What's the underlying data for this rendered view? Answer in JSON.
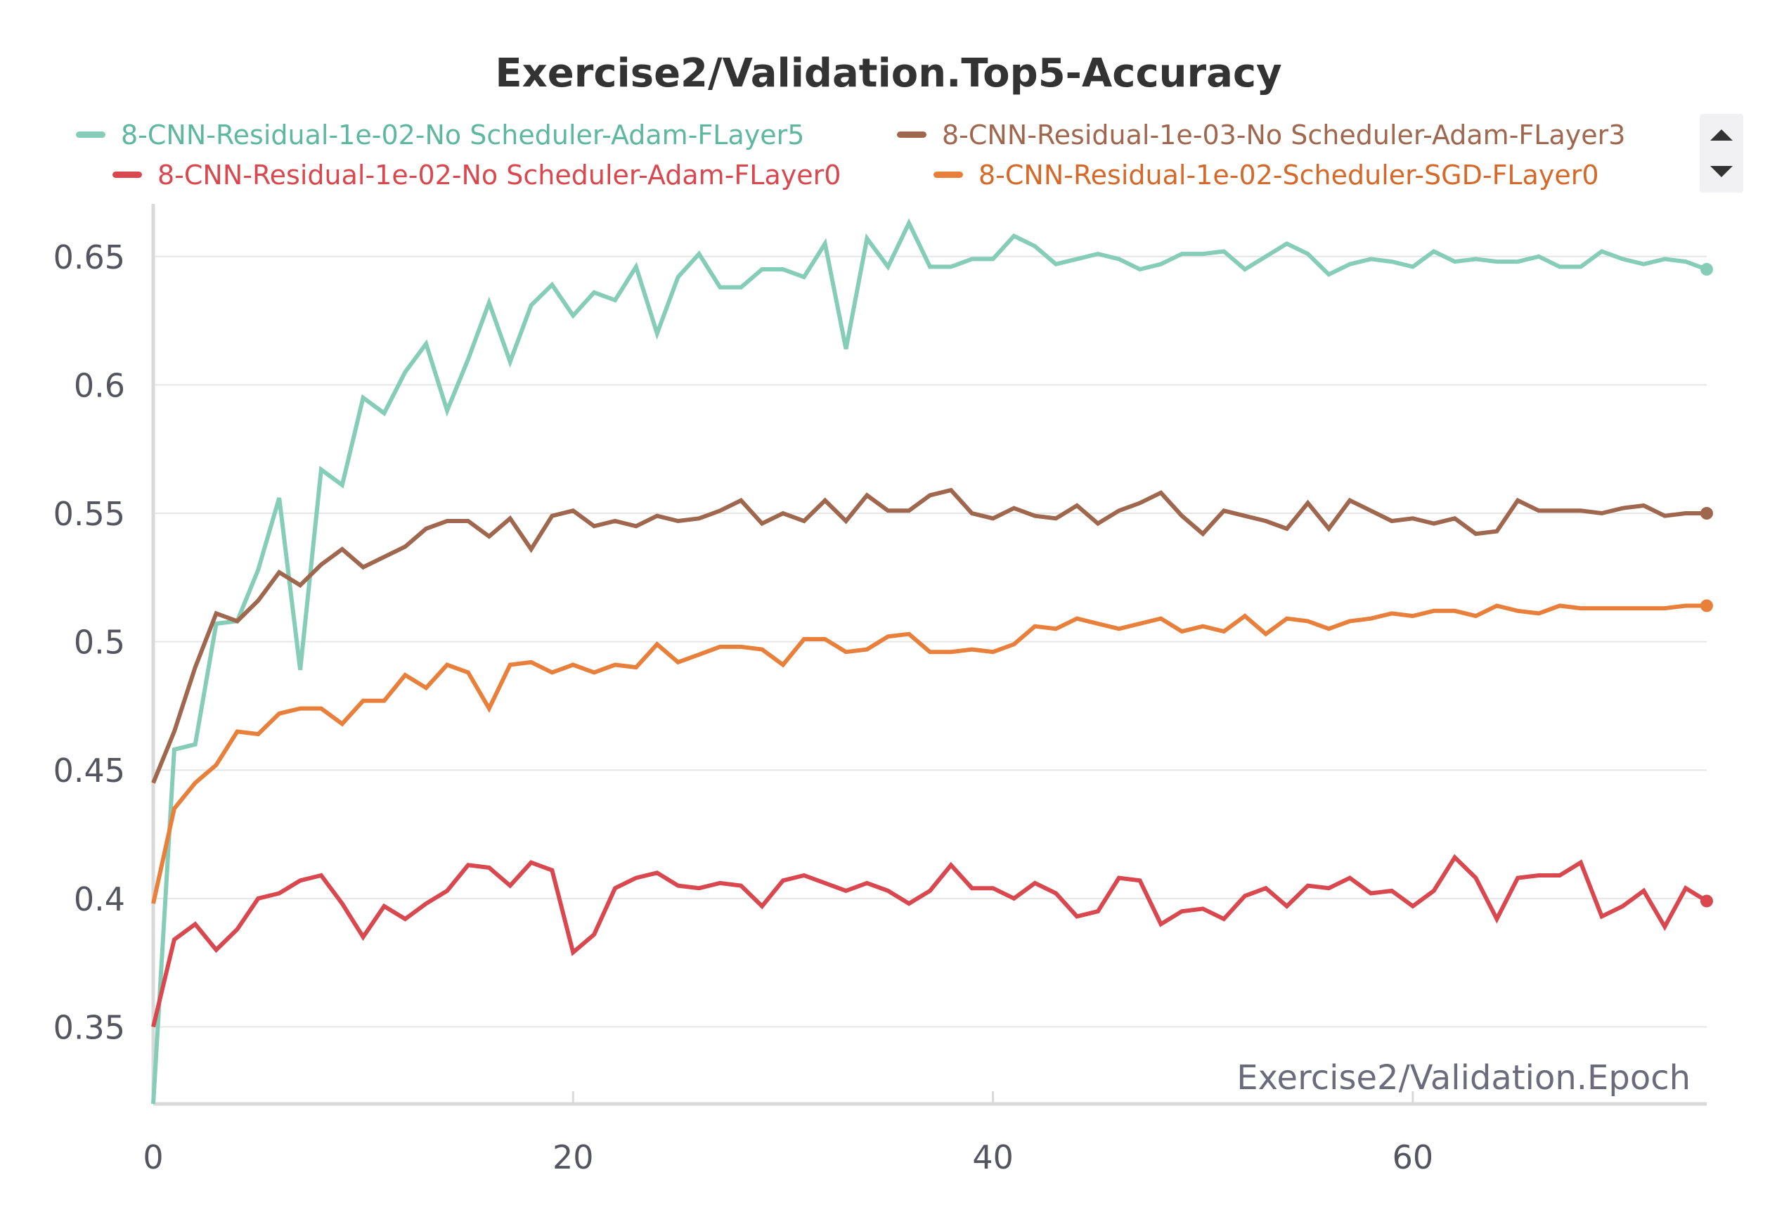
{
  "chart_data": {
    "type": "line",
    "title": "Exercise2/Validation.Top5-Accuracy",
    "xlabel": "Exercise2/Validation.Epoch",
    "ylabel": "",
    "xlim": [
      0,
      74
    ],
    "ylim": [
      0.32,
      0.665
    ],
    "x_ticks": [
      0,
      20,
      40,
      60
    ],
    "y_ticks": [
      0.35,
      0.4,
      0.45,
      0.5,
      0.55,
      0.6,
      0.65
    ],
    "y_tick_labels": [
      "0.35",
      "0.4",
      "0.45",
      "0.5",
      "0.55",
      "0.6",
      "0.65"
    ],
    "grid": true,
    "legend_position": "top",
    "series": [
      {
        "name": "8-CNN-Residual-1e-02-No Scheduler-Adam-FLayer5",
        "color": "#86cdb8",
        "text_color": "#5eb89f",
        "values": [
          0.32,
          0.458,
          0.46,
          0.507,
          0.508,
          0.528,
          0.556,
          0.489,
          0.567,
          0.561,
          0.595,
          0.589,
          0.605,
          0.616,
          0.59,
          0.61,
          0.632,
          0.609,
          0.631,
          0.639,
          0.627,
          0.636,
          0.633,
          0.646,
          0.62,
          0.642,
          0.651,
          0.638,
          0.638,
          0.645,
          0.645,
          0.642,
          0.655,
          0.614,
          0.657,
          0.646,
          0.663,
          0.646,
          0.646,
          0.649,
          0.649,
          0.658,
          0.654,
          0.647,
          0.649,
          0.651,
          0.649,
          0.645,
          0.647,
          0.651,
          0.651,
          0.652,
          0.645,
          0.65,
          0.655,
          0.651,
          0.643,
          0.647,
          0.649,
          0.648,
          0.646,
          0.652,
          0.648,
          0.649,
          0.648,
          0.648,
          0.65,
          0.646,
          0.646,
          0.652,
          0.649,
          0.647,
          0.649,
          0.648,
          0.645
        ]
      },
      {
        "name": "8-CNN-Residual-1e-03-No Scheduler-Adam-FLayer3",
        "color": "#a0674f",
        "text_color": "#a0674f",
        "values": [
          0.445,
          0.465,
          0.49,
          0.511,
          0.508,
          0.516,
          0.527,
          0.522,
          0.53,
          0.536,
          0.529,
          0.533,
          0.537,
          0.544,
          0.547,
          0.547,
          0.541,
          0.548,
          0.536,
          0.549,
          0.551,
          0.545,
          0.547,
          0.545,
          0.549,
          0.547,
          0.548,
          0.551,
          0.555,
          0.546,
          0.55,
          0.547,
          0.555,
          0.547,
          0.557,
          0.551,
          0.551,
          0.557,
          0.559,
          0.55,
          0.548,
          0.552,
          0.549,
          0.548,
          0.553,
          0.546,
          0.551,
          0.554,
          0.558,
          0.549,
          0.542,
          0.551,
          0.549,
          0.547,
          0.544,
          0.554,
          0.544,
          0.555,
          0.551,
          0.547,
          0.548,
          0.546,
          0.548,
          0.542,
          0.543,
          0.555,
          0.551,
          0.551,
          0.551,
          0.55,
          0.552,
          0.553,
          0.549,
          0.55,
          0.55
        ]
      },
      {
        "name": "8-CNN-Residual-1e-02-No Scheduler-Adam-FLayer0",
        "color": "#d9474f",
        "text_color": "#d9474f",
        "values": [
          0.35,
          0.384,
          0.39,
          0.38,
          0.388,
          0.4,
          0.402,
          0.407,
          0.409,
          0.398,
          0.385,
          0.397,
          0.392,
          0.398,
          0.403,
          0.413,
          0.412,
          0.405,
          0.414,
          0.411,
          0.379,
          0.386,
          0.404,
          0.408,
          0.41,
          0.405,
          0.404,
          0.406,
          0.405,
          0.397,
          0.407,
          0.409,
          0.406,
          0.403,
          0.406,
          0.403,
          0.398,
          0.403,
          0.413,
          0.404,
          0.404,
          0.4,
          0.406,
          0.402,
          0.393,
          0.395,
          0.408,
          0.407,
          0.39,
          0.395,
          0.396,
          0.392,
          0.401,
          0.404,
          0.397,
          0.405,
          0.404,
          0.408,
          0.402,
          0.403,
          0.397,
          0.403,
          0.416,
          0.408,
          0.392,
          0.408,
          0.409,
          0.409,
          0.414,
          0.393,
          0.397,
          0.403,
          0.389,
          0.404,
          0.399
        ]
      },
      {
        "name": "8-CNN-Residual-1e-02-Scheduler-SGD-FLayer0",
        "color": "#e8803c",
        "text_color": "#d4692a",
        "values": [
          0.398,
          0.435,
          0.445,
          0.452,
          0.465,
          0.464,
          0.472,
          0.474,
          0.474,
          0.468,
          0.477,
          0.477,
          0.487,
          0.482,
          0.491,
          0.488,
          0.474,
          0.491,
          0.492,
          0.488,
          0.491,
          0.488,
          0.491,
          0.49,
          0.499,
          0.492,
          0.495,
          0.498,
          0.498,
          0.497,
          0.491,
          0.501,
          0.501,
          0.496,
          0.497,
          0.502,
          0.503,
          0.496,
          0.496,
          0.497,
          0.496,
          0.499,
          0.506,
          0.505,
          0.509,
          0.507,
          0.505,
          0.507,
          0.509,
          0.504,
          0.506,
          0.504,
          0.51,
          0.503,
          0.509,
          0.508,
          0.505,
          0.508,
          0.509,
          0.511,
          0.51,
          0.512,
          0.512,
          0.51,
          0.514,
          0.512,
          0.511,
          0.514,
          0.513,
          0.513,
          0.513,
          0.513,
          0.513,
          0.514,
          0.514
        ]
      }
    ]
  }
}
